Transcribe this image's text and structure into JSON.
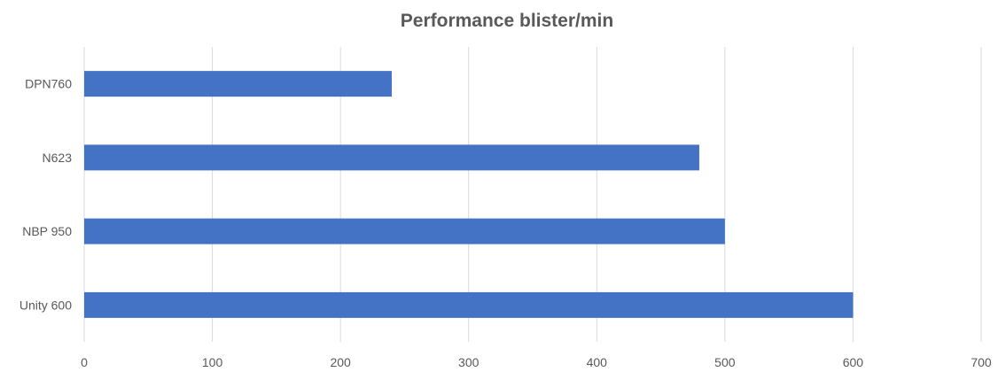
{
  "chart_data": {
    "type": "bar",
    "orientation": "horizontal",
    "title": "Performance blister/min",
    "categories": [
      "DPN760",
      "N623",
      "NBP 950",
      "Unity 600"
    ],
    "values": [
      240,
      480,
      500,
      600
    ],
    "xlim": [
      0,
      700
    ],
    "x_ticks": [
      0,
      100,
      200,
      300,
      400,
      500,
      600,
      700
    ],
    "grid": true,
    "legend": "none",
    "bar_color": "#4472c4"
  }
}
